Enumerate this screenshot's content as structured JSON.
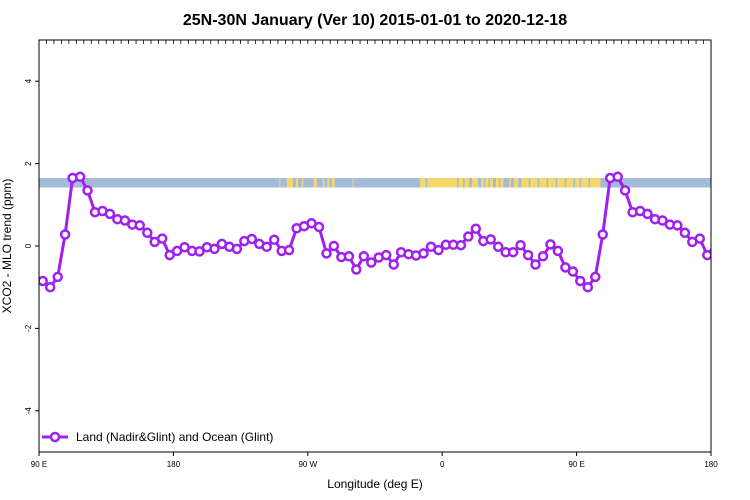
{
  "chart_data": {
    "type": "line",
    "title": "25N-30N January (Ver 10)   2015-01-01 to 2020-12-18",
    "xlabel": "Longitude (deg E)",
    "ylabel": "XCO2 - MLO trend (ppm)",
    "xlim": [
      90,
      540
    ],
    "ylim": [
      -5,
      5
    ],
    "x_ticks": [
      {
        "value": 90,
        "label": "90 E"
      },
      {
        "value": 180,
        "label": "180"
      },
      {
        "value": 270,
        "label": "90 W"
      },
      {
        "value": 360,
        "label": "0"
      },
      {
        "value": 450,
        "label": "90 E"
      },
      {
        "value": 540,
        "label": "180"
      }
    ],
    "y_ticks": [
      {
        "value": -4,
        "label": "-4"
      },
      {
        "value": -2,
        "label": "-2"
      },
      {
        "value": 0,
        "label": "0"
      },
      {
        "value": 2,
        "label": "2"
      },
      {
        "value": 4,
        "label": "4"
      }
    ],
    "grid": false,
    "legend_position": "bottom-left",
    "series": [
      {
        "name": "Land (Nadir&Glint) and Ocean (Glint)",
        "color": "#a020f0",
        "x": [
          92.5,
          97.5,
          102.5,
          107.5,
          112.5,
          117.5,
          122.5,
          127.5,
          132.5,
          137.5,
          142.5,
          147.5,
          152.5,
          157.5,
          162.5,
          167.5,
          172.5,
          177.5,
          182.5,
          187.5,
          192.5,
          197.5,
          202.5,
          207.5,
          212.5,
          217.5,
          222.5,
          227.5,
          232.5,
          237.5,
          242.5,
          247.5,
          252.5,
          257.5,
          262.5,
          267.5,
          272.5,
          277.5,
          282.5,
          287.5,
          292.5,
          297.5,
          302.5,
          307.5,
          312.5,
          317.5,
          322.5,
          327.5,
          332.5,
          337.5,
          342.5,
          347.5,
          352.5,
          357.5,
          362.5,
          367.5,
          372.5,
          377.5,
          382.5,
          387.5,
          392.5,
          397.5,
          402.5,
          407.5,
          412.5,
          417.5,
          422.5,
          427.5,
          432.5,
          437.5,
          442.5,
          447.5,
          452.5,
          457.5,
          462.5,
          467.5,
          472.5,
          477.5,
          482.5,
          487.5,
          492.5,
          497.5,
          502.5,
          507.5,
          512.5,
          517.5,
          522.5,
          527.5,
          532.5,
          537.5,
          542.5
        ],
        "values": [
          -0.85,
          -1.0,
          -0.75,
          0.28,
          1.65,
          1.68,
          1.35,
          0.82,
          0.85,
          0.78,
          0.65,
          0.62,
          0.52,
          0.5,
          0.32,
          0.1,
          0.18,
          -0.22,
          -0.12,
          -0.03,
          -0.12,
          -0.13,
          -0.03,
          -0.07,
          0.05,
          -0.02,
          -0.07,
          0.12,
          0.17,
          0.05,
          -0.02,
          0.15,
          -0.12,
          -0.1,
          0.43,
          0.48,
          0.55,
          0.46,
          -0.18,
          0.0,
          -0.27,
          -0.25,
          -0.57,
          -0.25,
          -0.4,
          -0.28,
          -0.22,
          -0.45,
          -0.15,
          -0.2,
          -0.23,
          -0.18,
          -0.02,
          -0.1,
          0.03,
          0.03,
          0.02,
          0.23,
          0.42,
          0.12,
          0.16,
          -0.02,
          -0.15,
          -0.15,
          0.02,
          -0.22,
          -0.45,
          -0.25,
          0.04,
          -0.12,
          -0.52,
          -0.62,
          -0.85,
          -1.0,
          -0.75,
          0.28,
          1.65,
          1.68,
          1.35,
          0.82,
          0.85,
          0.78,
          0.65,
          0.62,
          0.52,
          0.5,
          0.32,
          0.1,
          0.18,
          -0.22,
          -0.12
        ]
      }
    ],
    "landmask_band": {
      "y_range": [
        1.42,
        1.65
      ],
      "ocean_color": "#a3bbd9",
      "land_color": "#f5d76e",
      "land_x_ranges": [
        [
          251,
          251.5
        ],
        [
          256,
          260
        ],
        [
          262,
          263.5
        ],
        [
          266,
          267
        ],
        [
          274,
          276
        ],
        [
          280,
          281
        ],
        [
          283,
          284.5
        ],
        [
          286,
          288
        ],
        [
          300,
          300.5
        ],
        [
          345,
          349
        ],
        [
          350,
          370
        ],
        [
          371,
          374
        ],
        [
          375,
          378
        ],
        [
          380,
          384
        ],
        [
          386,
          388
        ],
        [
          389,
          391
        ],
        [
          392,
          394
        ],
        [
          396,
          398
        ],
        [
          399,
          401
        ],
        [
          405,
          406
        ],
        [
          408,
          411
        ],
        [
          413,
          418
        ],
        [
          419,
          424
        ],
        [
          425,
          430
        ],
        [
          431,
          436
        ],
        [
          437,
          442
        ],
        [
          443,
          448
        ],
        [
          449,
          452
        ],
        [
          453,
          458
        ],
        [
          459,
          466
        ]
      ]
    }
  }
}
